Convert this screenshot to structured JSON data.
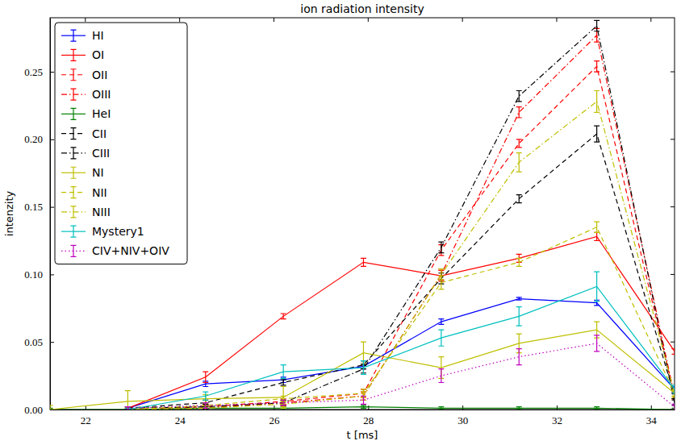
{
  "chart_data": {
    "type": "line",
    "title": "ion radiation intensity",
    "x_label": "t [ms]",
    "y_label": "intenzity",
    "x": [
      21.25,
      22.9,
      24.55,
      26.2,
      27.9,
      29.55,
      31.2,
      32.85,
      34.5
    ],
    "xlim": [
      21.25,
      34.5
    ],
    "xticks": [
      22,
      24,
      26,
      28,
      30,
      32,
      34
    ],
    "ylim": [
      0,
      0.29
    ],
    "yticks": [
      {
        "value": 0,
        "label": "0.00"
      },
      {
        "value": 0.05,
        "label": "0.05"
      },
      {
        "value": 0.1,
        "label": "0.10"
      },
      {
        "value": 0.15,
        "label": "0.15"
      },
      {
        "value": 0.2,
        "label": "0.20"
      },
      {
        "value": 0.25,
        "label": "0.25"
      }
    ],
    "legend": "upper left",
    "grid": false,
    "series": [
      {
        "name": "HI",
        "color": "#0000ff",
        "line_style": "solid",
        "values": [
          null,
          0.001,
          0.019,
          0.022,
          0.032,
          0.065,
          0.082,
          0.079,
          0.015
        ],
        "errors": [
          null,
          0.001,
          0.002,
          0.002,
          0.002,
          0.002,
          0.001,
          0.002,
          0.002
        ]
      },
      {
        "name": "OI",
        "color": "#ff0000",
        "line_style": "solid",
        "values": [
          null,
          0.001,
          0.024,
          0.069,
          0.109,
          0.099,
          0.112,
          0.128,
          0.043
        ],
        "errors": [
          null,
          0.001,
          0.004,
          0.002,
          0.003,
          0.004,
          0.003,
          0.003,
          0.002
        ]
      },
      {
        "name": "OII",
        "color": "#ff0000",
        "line_style": "dashed",
        "values": [
          null,
          0,
          0.002,
          0.006,
          0.012,
          0.118,
          0.197,
          0.254,
          0.01
        ],
        "errors": [
          null,
          0.001,
          0.002,
          0.002,
          0.003,
          0.004,
          0.003,
          0.004,
          0.002
        ]
      },
      {
        "name": "OIII",
        "color": "#ff0000",
        "line_style": "dashdot",
        "values": [
          null,
          0,
          0.001,
          0.005,
          0.01,
          0.1,
          0.22,
          0.277,
          0.01
        ],
        "errors": [
          null,
          0.001,
          0.002,
          0.002,
          0.003,
          0.004,
          0.004,
          0.005,
          0.002
        ]
      },
      {
        "name": "HeI",
        "color": "#008000",
        "line_style": "solid",
        "values": [
          0,
          0,
          0.001,
          0.001,
          0.002,
          0.001,
          0.001,
          0.001,
          0
        ],
        "errors": [
          0.001,
          0.001,
          0.001,
          0.001,
          0.001,
          0.001,
          0.001,
          0.001,
          0.001
        ]
      },
      {
        "name": "CII",
        "color": "#000000",
        "line_style": "dashed",
        "values": [
          null,
          0.001,
          0.005,
          0.02,
          0.033,
          0.097,
          0.156,
          0.204,
          0.01
        ],
        "errors": [
          null,
          0.001,
          0.002,
          0.002,
          0.003,
          0.004,
          0.003,
          0.006,
          0.002
        ]
      },
      {
        "name": "CIII",
        "color": "#000000",
        "line_style": "dashdot",
        "values": [
          null,
          0.001,
          0.002,
          0.005,
          0.03,
          0.12,
          0.232,
          0.284,
          0.005
        ],
        "errors": [
          null,
          0.001,
          0.002,
          0.002,
          0.003,
          0.004,
          0.004,
          0.004,
          0.002
        ]
      },
      {
        "name": "NI",
        "color": "#bfbf00",
        "line_style": "solid",
        "values": [
          0,
          0.006,
          0.008,
          0.009,
          0.042,
          0.031,
          0.049,
          0.059,
          0.012
        ],
        "errors": [
          0.003,
          0.008,
          0.003,
          0.008,
          0.008,
          0.008,
          0.007,
          0.006,
          0.003
        ]
      },
      {
        "name": "NII",
        "color": "#bfbf00",
        "line_style": "dashed",
        "values": [
          null,
          0,
          0.003,
          0.008,
          0.012,
          0.094,
          0.109,
          0.135,
          0.012
        ],
        "errors": [
          null,
          0.001,
          0.002,
          0.002,
          0.003,
          0.005,
          0.003,
          0.004,
          0.002
        ]
      },
      {
        "name": "NIII",
        "color": "#bfbf00",
        "line_style": "dashdot",
        "values": [
          null,
          0,
          0.001,
          0.004,
          0.01,
          0.1,
          0.183,
          0.228,
          0.012
        ],
        "errors": [
          null,
          0.001,
          0.002,
          0.002,
          0.003,
          0.004,
          0.007,
          0.008,
          0.002
        ]
      },
      {
        "name": "Mystery1",
        "color": "#00bfbf",
        "line_style": "solid",
        "values": [
          null,
          0,
          0.01,
          0.028,
          0.031,
          0.053,
          0.069,
          0.091,
          0.015
        ],
        "errors": [
          null,
          0.001,
          0.003,
          0.005,
          0.005,
          0.006,
          0.007,
          0.011,
          0.003
        ]
      },
      {
        "name": "CIV+NIV+OIV",
        "color": "#bf00bf",
        "line_style": "dotted",
        "values": [
          null,
          0.001,
          0.003,
          0.005,
          0.007,
          0.025,
          0.039,
          0.049,
          0.002
        ],
        "errors": [
          null,
          0.001,
          0.002,
          0.002,
          0.003,
          0.005,
          0.006,
          0.006,
          0.002
        ]
      }
    ]
  }
}
